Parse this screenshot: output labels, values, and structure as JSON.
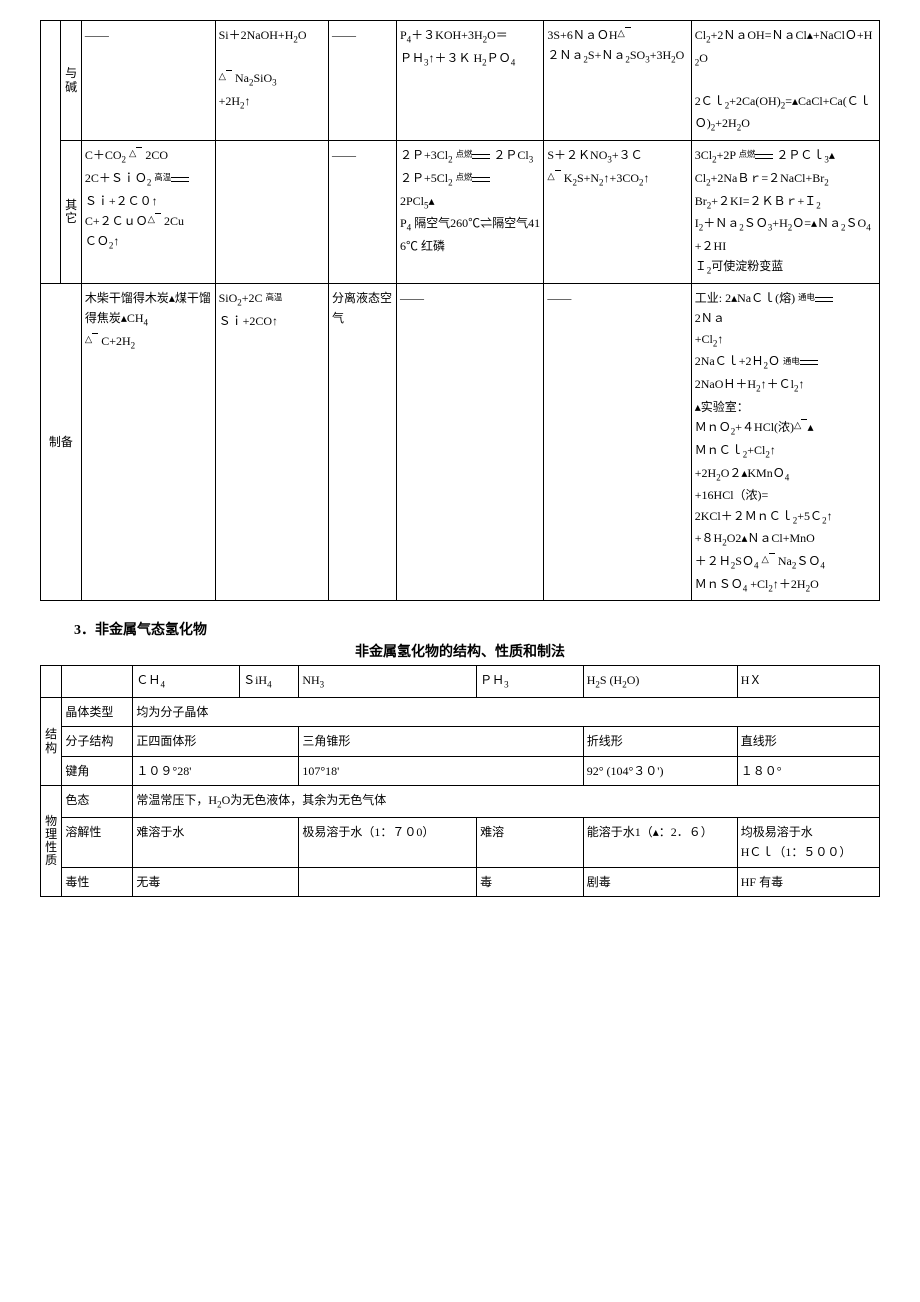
{
  "table1": {
    "rows": {
      "alkali": {
        "label": "与碱",
        "c2": "——",
        "c3": "Si＋2NaOH+H₂O\n\n≜ Na₂SiO₃\n+2H₂↑",
        "c4": "——",
        "c5": "P₄＋３KOH+3H₂O＝\nＰＨ₃↑＋３Ｋ H₂ＰＯ₄",
        "c6": "3S+6ＮａＯH≜\n２Ｎａ₂S+Ｎａ₂SO₃+3H₂O",
        "c7": "Cl₂+2ＮａOH=ＮａCl▴+NaClＯ+H₂O\n\n2Ｃｌ₂+2Ca(OH)₂=▴CaCl+Ca(ＣｌＯ)₂+2H₂O"
      },
      "other": {
        "label": "其它",
        "c2": "C＋CO₂ ≜ 2CO\n2C＋ＳｉＯ₂ 高温══\nＳｉ+２Ｃ０↑\nC+２ＣｕＯ≜ 2Cu\nＣＯ₂↑",
        "c3": "",
        "c4": "——",
        "c5": "２Ｐ+3Cl₂ 点燃  ２ＰCl₃\n２Ｐ+5Cl₂ 点燃\n2PCl₅▴\nP₄ 隔空气260℃⇌隔空气416℃ 红磷",
        "c6": "S＋２ＫNO₃+３Ｃ\n≜ K₂S+N₂↑+3CO₂↑",
        "c7": "3Cl₂+2P 点燃  ２ＰＣｌ₃▴\nCl₂+2NaＢｒ=２NaCl+Br₂\nBr₂+２KI=２ＫＢｒ+Ｉ₂\nI₂＋Ｎａ₂ＳＯ₃+H₂Ｏ=▴Ｎａ₂ＳO₄+２HI\nＩ₂可使淀粉变蓝"
      },
      "prepare": {
        "label": "制备",
        "c2": "木柴干馏得木炭▴煤干馏得焦炭▴CH₄\n≜ C+2H₂",
        "c3": "SiO₂+2C 高温\nＳｉ+2CO↑",
        "c4": "分离液态空气",
        "c5": "——",
        "c6": "——",
        "c7": "工业: 2▴NaＣｌ(熔) 通电══\n2Ｎａ\n+Cl₂↑\n2NaＣｌ+2Ｈ₂Ｏ 通电══\n2NaOＨ＋H₂↑＋Ｃl₂↑\n▴实验室：\nＭｎＯ₂+４HCl(浓)≜▴\nＭｎＣｌ₂+Cl₂↑\n+2H₂O２▴KMnＯ₄\n+16HCl（浓)=\n2KCl＋２ＭｎＣｌ₂+5Ｃ₂↑\n+８H₂O2▴ＮａCl+MnO\n＋２Ｈ₂SＯ₄ ≜ Na₂ＳＯ₄\nＭｎＳＯ₄    +Cl₂↑＋2H₂O"
      }
    }
  },
  "section3": {
    "number": "3．非金属气态氢化物",
    "subtitle": "非金属氢化物的结构、性质和制法"
  },
  "table2": {
    "header": {
      "h2": "ＣＨ₄",
      "h3": "ＳiH₄",
      "h4": "NH₃",
      "h5": "ＰＨ₃",
      "h6": "H₂S (H₂O)",
      "h7": "HＸ"
    },
    "structure": {
      "group": "结构",
      "r1": {
        "label": "晶体类型",
        "val": "均为分子晶体"
      },
      "r2": {
        "label": "分子结构",
        "c2": "正四面体形",
        "c4": "三角锥形",
        "c6": "折线形",
        "c7": "直线形"
      },
      "r3": {
        "label": "键角",
        "c2": "１０９°28'",
        "c4": "107°18'",
        "c6": "92° (104°３０')",
        "c7": "１８０°"
      }
    },
    "physical": {
      "group": "物理性质",
      "r1": {
        "label": "色态",
        "val": "常温常压下，H₂O为无色液体，其余为无色气体"
      },
      "r2": {
        "label": "溶解性",
        "c2": "难溶于水",
        "c4": "极易溶于水（1：７０0）",
        "c5": "难溶",
        "c6": "能溶于水1（▴：2．６）",
        "c7": "均极易溶于水\nHＣｌ（1：５００）"
      },
      "r3": {
        "label": "毒性",
        "c2": "无毒",
        "c4": "",
        "c5": "毒",
        "c6": "剧毒",
        "c7": "HF 有毒"
      }
    }
  }
}
